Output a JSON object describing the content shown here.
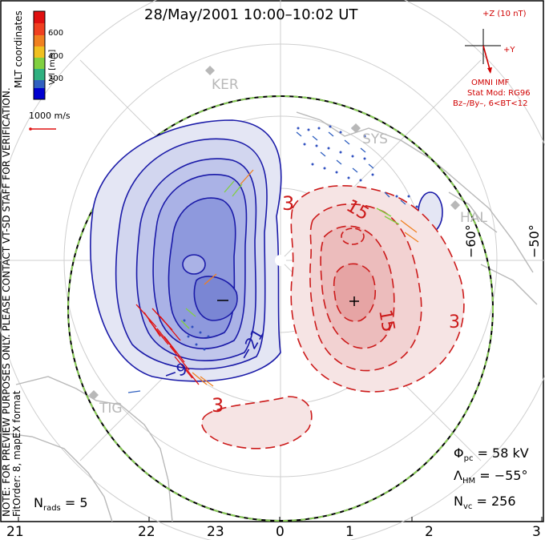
{
  "title": "28/May/2001 10:00–10:02 UT",
  "side_notes": {
    "coords": "MLT coordinates",
    "preview": "NOTE: FOR PREVIEW PURPOSES ONLY. PLEASE CONTACT VT-SD STAFF FOR VERIFICATION.",
    "fit": "FitOrder: 8, mapEX format"
  },
  "velocity_bar": {
    "label": "Vel [m/s]",
    "ticks": [
      "600",
      "400",
      "200"
    ],
    "colors": [
      "#e01010",
      "#f08020",
      "#f0c020",
      "#80d040",
      "#30b080",
      "#3060c0",
      "#0000d0"
    ]
  },
  "reference_vector": "1000 m/s",
  "imf": {
    "z_label": "+Z (10 nT)",
    "y_label": "+Y",
    "source": "OMNI IMF",
    "stat_mod": "Stat Mod: RG96",
    "condition": "Bz–/By–, 6<BT<12"
  },
  "stations": [
    "KER",
    "SYS",
    "HAL",
    "TIG"
  ],
  "lat_labels": [
    "−60°",
    "−50°"
  ],
  "contour_labels": {
    "neg": [
      "−21",
      "−9"
    ],
    "pos": [
      "3",
      "15",
      "15",
      "3",
      "3"
    ]
  },
  "potential_minmax": {
    "min": "−",
    "max": "+"
  },
  "stats": {
    "phi_symbol": "Φ",
    "phi_sub": "pc",
    "phi_value": "= 58 kV",
    "lambda_symbol": "Λ",
    "lambda_sub": "HM",
    "lambda_value": "= −55°",
    "nvc_symbol": "N",
    "nvc_sub": "vc",
    "nvc_value": "= 256",
    "nrads_symbol": "N",
    "nrads_sub": "rads",
    "nrads_value": "= 5"
  },
  "mlt_axis": [
    "21",
    "22",
    "23",
    "0",
    "1",
    "2",
    "3"
  ],
  "colors": {
    "negative": "#1a1aa8",
    "positive": "#cc1a1a",
    "coast": "#b8b8b8",
    "boundary_green": "#88cc55"
  }
}
